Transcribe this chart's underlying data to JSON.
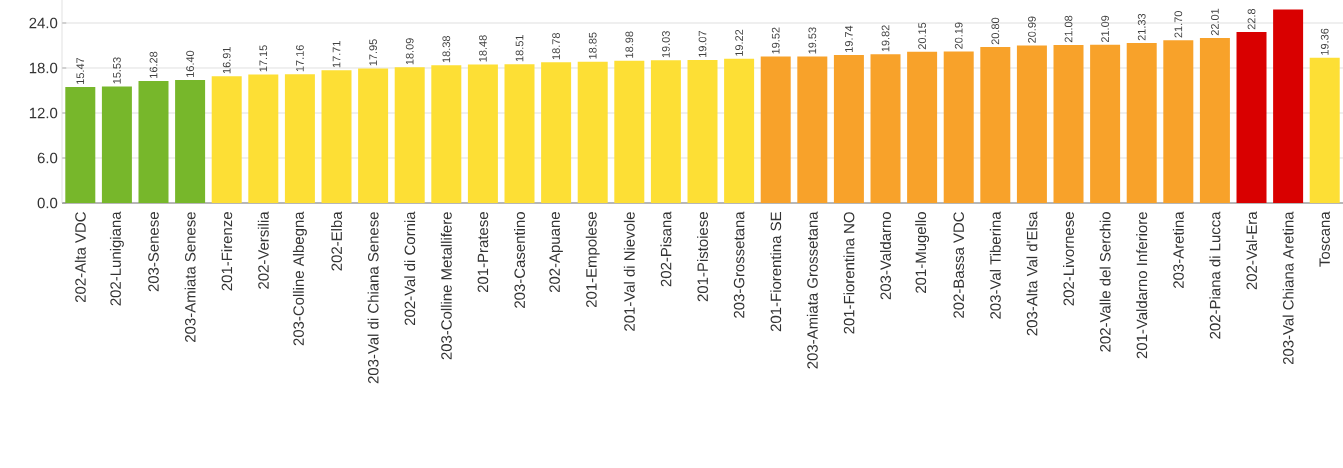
{
  "chart_data": {
    "type": "bar",
    "categories": [
      "202-Alta VDC",
      "202-Lunigiana",
      "203-Senese",
      "203-Amiata Senese",
      "201-Firenze",
      "202-Versilia",
      "203-Colline Albegna",
      "202-Elba",
      "203-Val di Chiana Senese",
      "202-Val di Cornia",
      "203-Colline Metallifere",
      "201-Pratese",
      "203-Casentino",
      "202-Apuane",
      "201-Empolese",
      "201-Val di Nievole",
      "202-Pisana",
      "201-Pistoiese",
      "203-Grossetana",
      "201-Fiorentina SE",
      "203-Amiata Grossetana",
      "201-Fiorentina NO",
      "203-Valdarno",
      "201-Mugello",
      "202-Bassa VDC",
      "203-Val Tiberina",
      "203-Alta Val d'Elsa",
      "202-Livornese",
      "202-Valle del Serchio",
      "201-Valdarno Inferiore",
      "203-Aretina",
      "202-Piana di Lucca",
      "202-Val-Era",
      "203-Val Chiana Aretina",
      "Toscana"
    ],
    "values": [
      15.47,
      15.53,
      16.28,
      16.4,
      16.91,
      17.15,
      17.16,
      17.71,
      17.95,
      18.09,
      18.38,
      18.48,
      18.51,
      18.78,
      18.85,
      18.98,
      19.03,
      19.07,
      19.22,
      19.52,
      19.53,
      19.74,
      19.82,
      20.15,
      20.19,
      20.8,
      20.99,
      21.08,
      21.09,
      21.33,
      21.7,
      22.01,
      22.8,
      25.8,
      19.36
    ],
    "value_labels": [
      "15.47",
      "15.53",
      "16.28",
      "16.40",
      "16.91",
      "17.15",
      "17.16",
      "17.71",
      "17.95",
      "18.09",
      "18.38",
      "18.48",
      "18.51",
      "18.78",
      "18.85",
      "18.98",
      "19.03",
      "19.07",
      "19.22",
      "19.52",
      "19.53",
      "19.74",
      "19.82",
      "20.15",
      "20.19",
      "20.80",
      "20.99",
      "21.08",
      "21.09",
      "21.33",
      "21.70",
      "22.01",
      "22.8",
      null,
      "19.36"
    ],
    "colors": [
      "#77b72b",
      "#77b72b",
      "#77b72b",
      "#77b72b",
      "#fddf35",
      "#fddf35",
      "#fddf35",
      "#fddf35",
      "#fddf35",
      "#fddf35",
      "#fddf35",
      "#fddf35",
      "#fddf35",
      "#fddf35",
      "#fddf35",
      "#fddf35",
      "#fddf35",
      "#fddf35",
      "#fddf35",
      "#f8a22a",
      "#f8a22a",
      "#f8a22a",
      "#f8a22a",
      "#f8a22a",
      "#f8a22a",
      "#f8a22a",
      "#f8a22a",
      "#f8a22a",
      "#f8a22a",
      "#f8a22a",
      "#f8a22a",
      "#f8a22a",
      "#d90000",
      "#d90000",
      "#fddf35"
    ],
    "ylim": [
      0,
      30
    ],
    "yticks": [
      {
        "value": 0,
        "label": "0.0"
      },
      {
        "value": 6,
        "label": "6.0"
      },
      {
        "value": 12,
        "label": "12.0"
      },
      {
        "value": 18,
        "label": "18.0"
      },
      {
        "value": 24,
        "label": "24.0"
      }
    ],
    "grid": "y"
  }
}
